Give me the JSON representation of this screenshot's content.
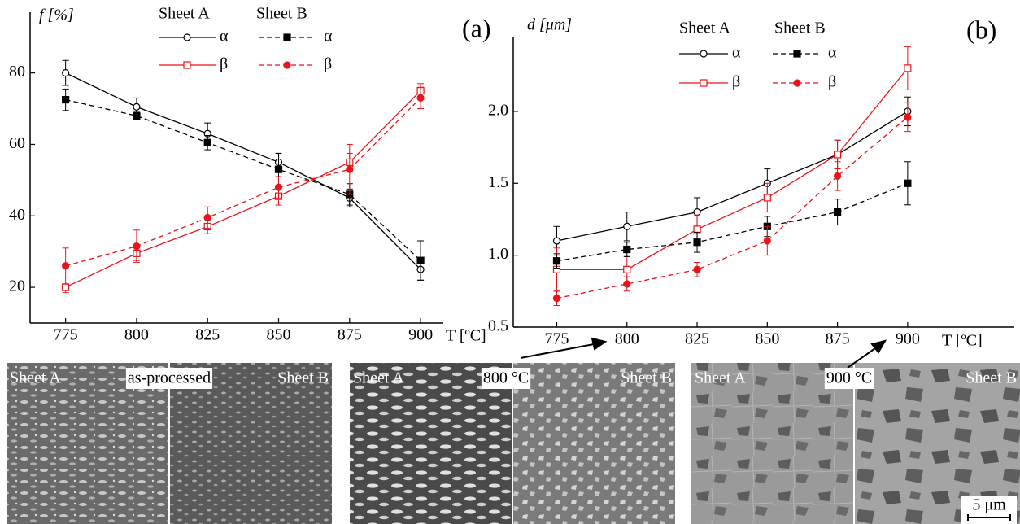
{
  "chart_data": [
    {
      "type": "line",
      "panel_label": "(a)",
      "y_label": "f [%]",
      "x_label": "T [ºC]",
      "legend_titles": [
        "Sheet A",
        "Sheet B"
      ],
      "x": [
        775,
        800,
        825,
        850,
        875,
        900
      ],
      "xlim": [
        762.5,
        908
      ],
      "xticks": [
        775,
        800,
        825,
        850,
        875,
        900
      ],
      "ylim": [
        10,
        97
      ],
      "yticks": [
        20,
        40,
        60,
        80
      ],
      "series": [
        {
          "name": "α",
          "color": "#000000",
          "dash": false,
          "marker": "open-circle",
          "values": [
            80,
            70.5,
            63,
            55,
            45,
            25
          ],
          "errors": [
            3.5,
            2.5,
            3,
            2.5,
            2.5,
            3
          ]
        },
        {
          "name": "β",
          "color": "#e8141c",
          "dash": false,
          "marker": "open-square",
          "values": [
            20,
            29.5,
            37,
            45.5,
            55,
            75
          ],
          "errors": [
            1.5,
            2,
            2,
            2.5,
            2.5,
            2
          ]
        },
        {
          "name": "α",
          "color": "#000000",
          "dash": true,
          "marker": "filled-square",
          "values": [
            72.5,
            68,
            60.5,
            53,
            46,
            27.5
          ],
          "errors": [
            3,
            1,
            2,
            4.5,
            3,
            5.5
          ]
        },
        {
          "name": "β",
          "color": "#e8141c",
          "dash": true,
          "marker": "filled-circle",
          "values": [
            26,
            31.5,
            39.5,
            48,
            53,
            73
          ],
          "errors": [
            5,
            4.5,
            3,
            3,
            7,
            3
          ]
        }
      ]
    },
    {
      "type": "line",
      "panel_label": "(b)",
      "y_label": "d [μm]",
      "x_label": "T [ºC]",
      "legend_titles": [
        "Sheet A",
        "Sheet B"
      ],
      "x": [
        775,
        800,
        825,
        850,
        875,
        900
      ],
      "xlim": [
        759.5,
        938
      ],
      "xticks": [
        775,
        800,
        825,
        850,
        875,
        900
      ],
      "ylim": [
        0.5,
        2.52
      ],
      "yticks": [
        {
          "value": 0.5,
          "label": "0.5"
        },
        {
          "value": 1,
          "label": "1.0"
        },
        {
          "value": 1.5,
          "label": "1.5"
        },
        {
          "value": 2,
          "label": "2.0"
        }
      ],
      "series": [
        {
          "name": "α",
          "color": "#000000",
          "dash": false,
          "marker": "open-circle",
          "values": [
            1.1,
            1.2,
            1.3,
            1.5,
            1.7,
            2.0
          ],
          "errors": [
            0.1,
            0.1,
            0.1,
            0.1,
            0.1,
            0.1
          ]
        },
        {
          "name": "β",
          "color": "#e8141c",
          "dash": false,
          "marker": "open-square",
          "values": [
            0.9,
            0.9,
            1.18,
            1.4,
            1.7,
            2.3
          ],
          "errors": [
            0.15,
            0.1,
            0.1,
            0.1,
            0.1,
            0.15
          ]
        },
        {
          "name": "α",
          "color": "#000000",
          "dash": true,
          "marker": "filled-square",
          "values": [
            0.96,
            1.04,
            1.09,
            1.2,
            1.3,
            1.5
          ],
          "errors": [
            0.05,
            0.05,
            0.07,
            0.07,
            0.09,
            0.15
          ]
        },
        {
          "name": "β",
          "color": "#e8141c",
          "dash": true,
          "marker": "filled-circle",
          "values": [
            0.7,
            0.8,
            0.9,
            1.1,
            1.55,
            1.96
          ],
          "errors": [
            0.05,
            0.05,
            0.05,
            0.1,
            0.1,
            0.1
          ]
        }
      ]
    }
  ],
  "micrographs": [
    {
      "left": "Sheet A",
      "center": "as-processed",
      "right": "Sheet B"
    },
    {
      "left": "Sheet A",
      "center": "800 °C",
      "right": "Sheet B"
    },
    {
      "left": "Sheet A",
      "center": "900 °C",
      "right": "Sheet B"
    }
  ],
  "scale_bar": "5 μm"
}
